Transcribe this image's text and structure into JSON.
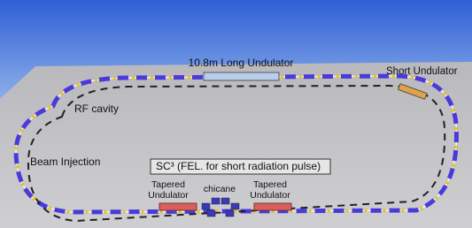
{
  "labels": {
    "long_undulator": "10.8m Long Undulator",
    "short_undulator": "Short Undulator",
    "rf_cavity": "RF cavity",
    "beam_injection": "Beam Injection",
    "sc3_box": "SC³ (FEL. for short radiation pulse)",
    "tapered_left": [
      "Tapered",
      "Undulator"
    ],
    "chicane": "chicane",
    "tapered_right": [
      "Tapered",
      "Undulator"
    ]
  }
}
